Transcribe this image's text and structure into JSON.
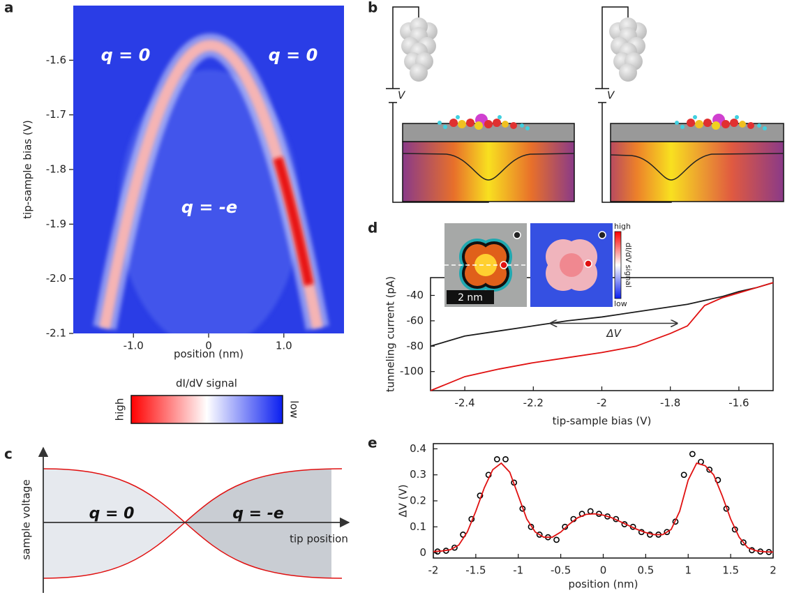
{
  "panel_labels": [
    "a",
    "b",
    "c",
    "d",
    "e"
  ],
  "panel_a": {
    "annotations": [
      "q = 0",
      "q = 0",
      "q = -e"
    ],
    "colorbar": {
      "title": "dI/dV signal",
      "high": "high",
      "low": "low"
    }
  },
  "panel_b": {
    "voltage_labels": [
      "V",
      "V"
    ]
  },
  "panel_c": {
    "y_label": "sample voltage",
    "x_label": "tip position",
    "regions": [
      "q = 0",
      "q = -e"
    ]
  },
  "panel_d_insets": {
    "scale_bar": "2 nm",
    "colorbar_title": "dI/dV signal",
    "high": "high",
    "low": "low"
  },
  "chart_data": [
    {
      "type": "heatmap",
      "xlabel": "position (nm)",
      "ylabel": "tip-sample bias (V)",
      "xlim": [
        -1.8,
        1.8
      ],
      "ylim": [
        -2.1,
        -1.5
      ],
      "xticks": [
        {
          "value": -1,
          "label": "-1.0"
        },
        0,
        {
          "value": 1,
          "label": "1.0"
        }
      ],
      "yticks": [
        -1.6,
        -1.7,
        -1.8,
        -1.9,
        {
          "value": -2,
          "label": "-2.0"
        },
        -2.1
      ]
    },
    {
      "type": "line",
      "xlabel": "tip-sample bias (V)",
      "ylabel": "tunneling current (pA)",
      "xlim": [
        -2.5,
        -1.5
      ],
      "ylim": [
        -115,
        -26
      ],
      "xticks": [
        -2.4,
        -2.2,
        -2,
        -1.8,
        -1.6
      ],
      "yticks": [
        -40,
        -60,
        -80,
        -100
      ],
      "x": [
        -2.5,
        -2.4,
        -2.3,
        -2.2,
        -2.1,
        -2.0,
        -1.9,
        -1.8,
        -1.75,
        -1.7,
        -1.65,
        -1.6,
        -1.55,
        -1.5
      ],
      "series": [
        {
          "color": "#1a1a1a",
          "values": [
            -80,
            -72,
            -68,
            -64,
            -60,
            -57,
            -53,
            -49,
            -47,
            -44,
            -41,
            -37,
            -34,
            -30
          ]
        },
        {
          "color": "#e01010",
          "values": [
            -115,
            -104,
            -98,
            -93,
            -89,
            -85,
            -80,
            -70,
            -64,
            -48,
            -42,
            -38,
            -34,
            -30
          ]
        }
      ],
      "annotations": [
        {
          "text": "ΔV",
          "x": [
            -2.15,
            -1.78
          ],
          "y": -62
        }
      ]
    },
    {
      "type": "scatter",
      "xlabel": "position (nm)",
      "ylabel": "ΔV (V)",
      "xlim": [
        -2,
        2
      ],
      "ylim": [
        -0.02,
        0.42
      ],
      "xticks": [
        -2,
        -1.5,
        -1,
        -0.5,
        0,
        0.5,
        1,
        1.5,
        2
      ],
      "yticks": [
        0,
        0.1,
        0.2,
        0.3,
        0.4
      ],
      "series": [
        {
          "type": "scatter",
          "color": "#000000",
          "x": [
            -1.95,
            -1.85,
            -1.75,
            -1.65,
            -1.55,
            -1.45,
            -1.35,
            -1.25,
            -1.15,
            -1.05,
            -0.95,
            -0.85,
            -0.75,
            -0.65,
            -0.55,
            -0.45,
            -0.35,
            -0.25,
            -0.15,
            -0.05,
            0.05,
            0.15,
            0.25,
            0.35,
            0.45,
            0.55,
            0.65,
            0.75,
            0.85,
            0.95,
            1.05,
            1.15,
            1.25,
            1.35,
            1.45,
            1.55,
            1.65,
            1.75,
            1.85,
            1.95
          ],
          "values": [
            0.005,
            0.008,
            0.02,
            0.07,
            0.13,
            0.22,
            0.3,
            0.36,
            0.36,
            0.27,
            0.17,
            0.1,
            0.07,
            0.06,
            0.05,
            0.1,
            0.13,
            0.15,
            0.16,
            0.15,
            0.14,
            0.13,
            0.11,
            0.1,
            0.08,
            0.07,
            0.07,
            0.08,
            0.12,
            0.3,
            0.38,
            0.35,
            0.32,
            0.28,
            0.17,
            0.09,
            0.04,
            0.01,
            0.005,
            0.003
          ]
        },
        {
          "type": "line",
          "color": "#e01010",
          "x": [
            -2,
            -1.9,
            -1.8,
            -1.7,
            -1.6,
            -1.5,
            -1.4,
            -1.3,
            -1.2,
            -1.1,
            -1,
            -0.9,
            -0.8,
            -0.7,
            -0.6,
            -0.5,
            -0.4,
            -0.3,
            -0.2,
            -0.1,
            0,
            0.1,
            0.2,
            0.3,
            0.4,
            0.5,
            0.6,
            0.7,
            0.8,
            0.9,
            1,
            1.1,
            1.2,
            1.3,
            1.4,
            1.5,
            1.6,
            1.7,
            1.8,
            1.9,
            2
          ],
          "values": [
            0.005,
            0.007,
            0.012,
            0.03,
            0.08,
            0.16,
            0.25,
            0.32,
            0.345,
            0.31,
            0.22,
            0.13,
            0.08,
            0.06,
            0.06,
            0.08,
            0.11,
            0.135,
            0.148,
            0.15,
            0.145,
            0.135,
            0.12,
            0.105,
            0.09,
            0.078,
            0.07,
            0.07,
            0.09,
            0.16,
            0.28,
            0.345,
            0.335,
            0.3,
            0.22,
            0.13,
            0.06,
            0.02,
            0.008,
            0.004,
            0.003
          ]
        }
      ]
    }
  ]
}
